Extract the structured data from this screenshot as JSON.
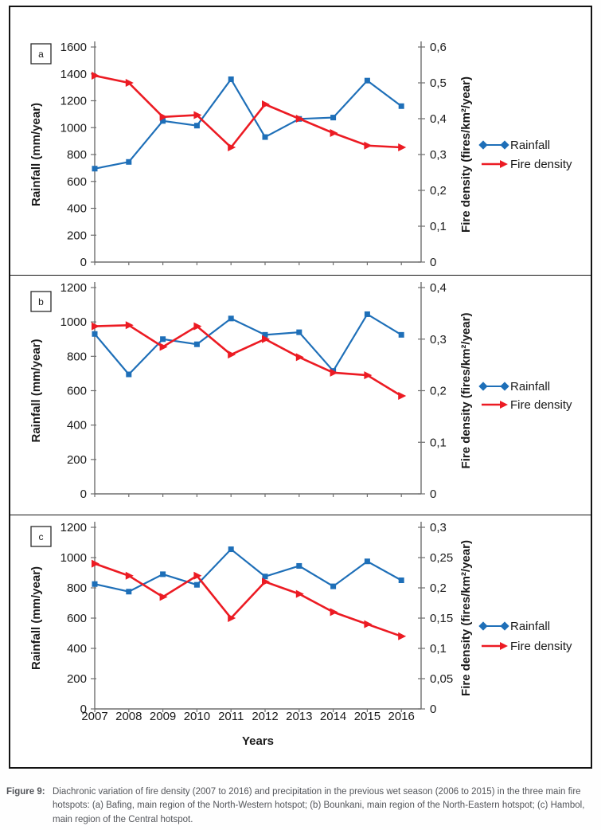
{
  "caption": {
    "label": "Figure 9:",
    "text": "Diachronic variation of fire density (2007 to 2016) and precipitation in the previous wet season (2006 to 2015) in the three main fire hotspots: (a) Bafing, main region of the North-Western hotspot; (b) Bounkani, main region of the North-Eastern hotspot; (c) Hambol, main region of the Central hotspot."
  },
  "colors": {
    "rainfall_blue": "#1E6FB8",
    "fire_red": "#EC1B23",
    "axis_gray": "#6f6f6f",
    "text_black": "#1a1a1a"
  },
  "chart_data": [
    {
      "id": "a",
      "type": "line",
      "panel_label": "a",
      "x": [
        "2007",
        "2008",
        "2009",
        "2010",
        "2011",
        "2012",
        "2013",
        "2014",
        "2015",
        "2016"
      ],
      "xlabel": "",
      "show_x_labels": false,
      "left_axis": {
        "title": "Rainfall (mm/year)",
        "min": 0,
        "max": 1600,
        "step": 200
      },
      "right_axis": {
        "title": "Fire density (fires/km²/year)",
        "min": 0,
        "max": 0.6,
        "tick_labels": [
          "0",
          "0,1",
          "0,2",
          "0,3",
          "0,4",
          "0,5",
          "0,6"
        ]
      },
      "series": [
        {
          "name": "Rainfall",
          "axis": "left",
          "color": "#1E6FB8",
          "marker": "square",
          "values": [
            695,
            745,
            1050,
            1015,
            1360,
            930,
            1065,
            1075,
            1350,
            1160
          ]
        },
        {
          "name": "Fire density",
          "axis": "right",
          "color": "#EC1B23",
          "marker": "triangle",
          "values": [
            0.52,
            0.5,
            0.405,
            0.41,
            0.32,
            0.44,
            0.4,
            0.36,
            0.325,
            0.32
          ]
        }
      ],
      "legend": [
        "Rainfall",
        "Fire density"
      ],
      "legend_position": "right-middle",
      "grid": false
    },
    {
      "id": "b",
      "type": "line",
      "panel_label": "b",
      "x": [
        "2007",
        "2008",
        "2009",
        "2010",
        "2011",
        "2012",
        "2013",
        "2014",
        "2015",
        "2016"
      ],
      "xlabel": "",
      "show_x_labels": false,
      "left_axis": {
        "title": "Rainfall (mm/year)",
        "min": 0,
        "max": 1200,
        "step": 200
      },
      "right_axis": {
        "title": "Fire density (fires/km²/year)",
        "min": 0,
        "max": 0.4,
        "tick_labels": [
          "0",
          "0,1",
          "0,2",
          "0,3",
          "0,4"
        ]
      },
      "series": [
        {
          "name": "Rainfall",
          "axis": "left",
          "color": "#1E6FB8",
          "marker": "square",
          "values": [
            930,
            695,
            900,
            870,
            1020,
            925,
            940,
            715,
            1045,
            925
          ]
        },
        {
          "name": "Fire density",
          "axis": "right",
          "color": "#EC1B23",
          "marker": "triangle",
          "values": [
            0.325,
            0.327,
            0.285,
            0.325,
            0.27,
            0.3,
            0.265,
            0.235,
            0.23,
            0.19
          ]
        }
      ],
      "legend": [
        "Rainfall",
        "Fire density"
      ],
      "legend_position": "right-middle",
      "grid": false
    },
    {
      "id": "c",
      "type": "line",
      "panel_label": "c",
      "x": [
        "2007",
        "2008",
        "2009",
        "2010",
        "2011",
        "2012",
        "2013",
        "2014",
        "2015",
        "2016"
      ],
      "xlabel": "Years",
      "show_x_labels": true,
      "left_axis": {
        "title": "Rainfall (mm/year)",
        "min": 0,
        "max": 1200,
        "step": 200
      },
      "right_axis": {
        "title": "Fire density (fires/km²/year)",
        "min": 0,
        "max": 0.3,
        "tick_labels": [
          "0",
          "0,05",
          "0,1",
          "0,15",
          "0,2",
          "0,25",
          "0,3"
        ]
      },
      "series": [
        {
          "name": "Rainfall",
          "axis": "left",
          "color": "#1E6FB8",
          "marker": "square",
          "values": [
            825,
            775,
            890,
            820,
            1055,
            875,
            945,
            810,
            975,
            850
          ]
        },
        {
          "name": "Fire density",
          "axis": "right",
          "color": "#EC1B23",
          "marker": "triangle",
          "values": [
            0.24,
            0.22,
            0.185,
            0.22,
            0.15,
            0.21,
            0.19,
            0.16,
            0.14,
            0.12
          ]
        }
      ],
      "legend": [
        "Rainfall",
        "Fire density"
      ],
      "legend_position": "right-middle",
      "grid": false
    }
  ]
}
